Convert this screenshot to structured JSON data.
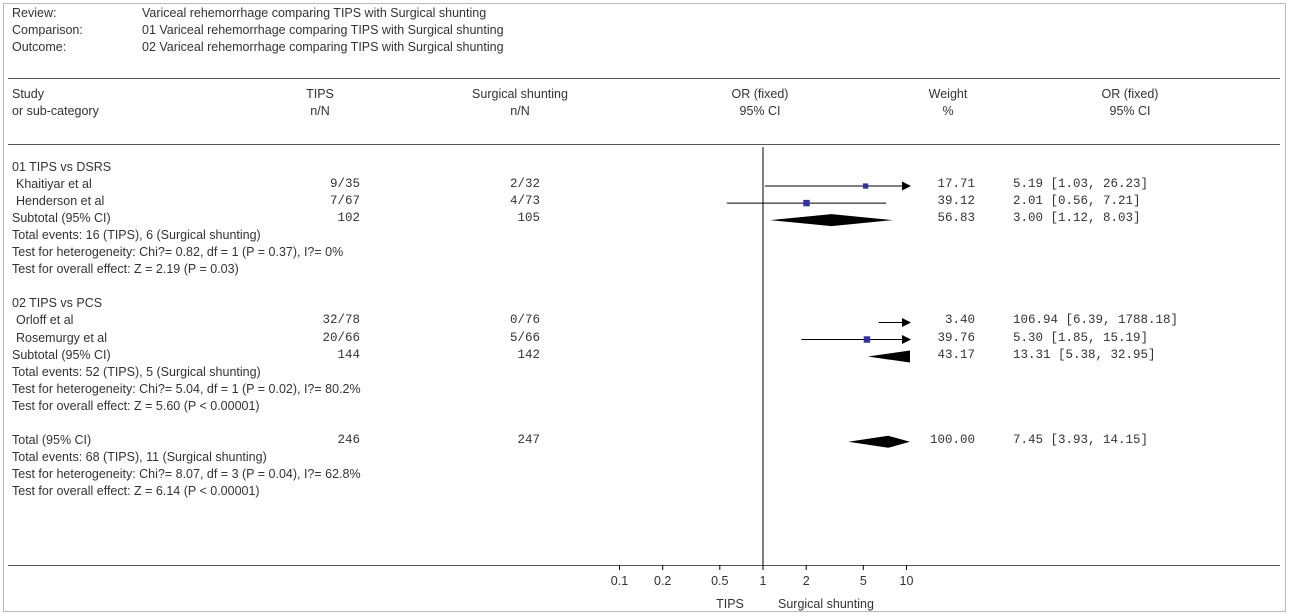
{
  "header": {
    "review_label": "Review:",
    "review": "Variceal rehemorrhage comparing TIPS with Surgical shunting",
    "comparison_label": "Comparison:",
    "comparison": "01 Variceal rehemorrhage comparing TIPS with Surgical shunting",
    "outcome_label": "Outcome:",
    "outcome": "02 Variceal rehemorrhage comparing TIPS with Surgical shunting"
  },
  "columns": {
    "study": [
      "Study",
      "or sub-category"
    ],
    "tips": [
      "TIPS",
      "n/N"
    ],
    "surgical": [
      "Surgical shunting",
      "n/N"
    ],
    "or_plot": [
      "OR (fixed)",
      "95% CI"
    ],
    "weight": [
      "Weight",
      "%"
    ],
    "or_ci": [
      "OR (fixed)",
      "95% CI"
    ]
  },
  "chart_data": {
    "type": "forest",
    "measure": "OR (fixed)",
    "x_scale": "log",
    "x_ticks": [
      0.1,
      0.2,
      0.5,
      1,
      2,
      5,
      10
    ],
    "xlim": [
      0.1,
      10
    ],
    "favours": [
      "TIPS",
      "Surgical shunting"
    ],
    "rows": [
      {
        "kind": "group",
        "label": "01 TIPS vs DSRS"
      },
      {
        "kind": "study",
        "label": "Khaitiyar et al",
        "tips": "9/35",
        "surgical": "2/32",
        "weight": "17.71",
        "ci_text": "5.19 [1.03, 26.23]",
        "or": 5.19,
        "lo": 1.03,
        "hi": 26.23
      },
      {
        "kind": "study",
        "label": "Henderson et al",
        "tips": "7/67",
        "surgical": "4/73",
        "weight": "39.12",
        "ci_text": "2.01 [0.56, 7.21]",
        "or": 2.01,
        "lo": 0.56,
        "hi": 7.21
      },
      {
        "kind": "subtotal",
        "label": "Subtotal (95% CI)",
        "tips": "102",
        "surgical": "105",
        "weight": "56.83",
        "ci_text": "3.00 [1.12, 8.03]",
        "or": 3.0,
        "lo": 1.12,
        "hi": 8.03
      },
      {
        "kind": "text",
        "label": "Total events: 16 (TIPS), 6 (Surgical shunting)"
      },
      {
        "kind": "text",
        "label": "Test for heterogeneity: Chi?= 0.82, df = 1 (P = 0.37), I?= 0%"
      },
      {
        "kind": "text",
        "label": "Test for overall effect: Z = 2.19 (P = 0.03)"
      },
      {
        "kind": "blank"
      },
      {
        "kind": "group",
        "label": "02 TIPS vs PCS"
      },
      {
        "kind": "study",
        "label": "Orloff et al",
        "tips": "32/78",
        "surgical": "0/76",
        "weight": "3.40",
        "ci_text": "106.94 [6.39, 1788.18]",
        "or": 106.94,
        "lo": 6.39,
        "hi": 1788.18
      },
      {
        "kind": "study",
        "label": "Rosemurgy et al",
        "tips": "20/66",
        "surgical": "5/66",
        "weight": "39.76",
        "ci_text": "5.30 [1.85, 15.19]",
        "or": 5.3,
        "lo": 1.85,
        "hi": 15.19
      },
      {
        "kind": "subtotal",
        "label": "Subtotal (95% CI)",
        "tips": "144",
        "surgical": "142",
        "weight": "43.17",
        "ci_text": "13.31 [5.38, 32.95]",
        "or": 13.31,
        "lo": 5.38,
        "hi": 32.95
      },
      {
        "kind": "text",
        "label": "Total events: 52 (TIPS), 5 (Surgical shunting)"
      },
      {
        "kind": "text",
        "label": "Test for heterogeneity: Chi?= 5.04, df = 1 (P = 0.02), I?= 80.2%"
      },
      {
        "kind": "text",
        "label": "Test for overall effect: Z = 5.60 (P < 0.00001)"
      },
      {
        "kind": "blank"
      },
      {
        "kind": "subtotal",
        "label": "Total (95% CI)",
        "tips": "246",
        "surgical": "247",
        "weight": "100.00",
        "ci_text": "7.45 [3.93, 14.15]",
        "or": 7.45,
        "lo": 3.93,
        "hi": 14.15
      },
      {
        "kind": "text",
        "label": "Total events: 68 (TIPS), 11 (Surgical shunting)"
      },
      {
        "kind": "text",
        "label": "Test for heterogeneity: Chi?= 8.07, df = 3 (P = 0.04), I?= 62.8%"
      },
      {
        "kind": "text",
        "label": "Test for overall effect: Z = 6.14 (P < 0.00001)"
      }
    ],
    "colors": {
      "marker": "#33339a",
      "diamond": "#000000",
      "line": "#000000",
      "text": "#333333"
    }
  }
}
